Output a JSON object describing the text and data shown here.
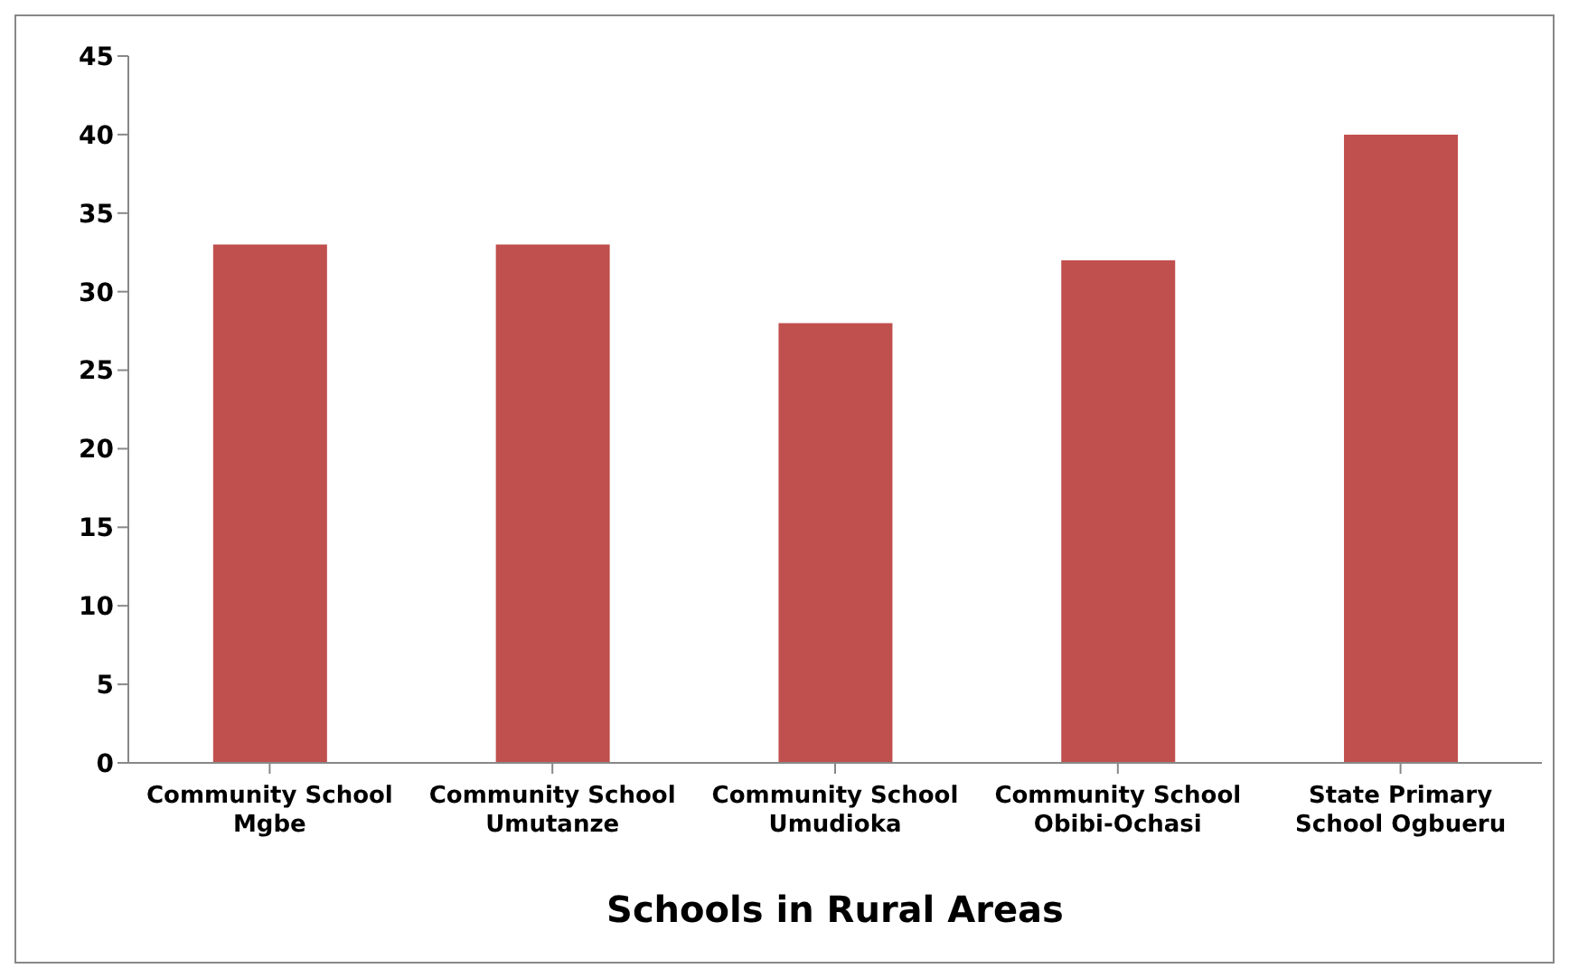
{
  "chart_data": {
    "type": "bar",
    "xlabel": "Schools in Rural Areas",
    "categories": [
      "Community School Mgbe",
      "Community School Umutanze",
      "Community School Umudioka",
      "Community School Obibi-Ochasi",
      "State Primary School Ogbueru"
    ],
    "values": [
      33,
      33,
      28,
      32,
      40
    ],
    "color": "#c0504d",
    "ylim": [
      0,
      45
    ],
    "yticks": [
      0,
      5,
      10,
      15,
      20,
      25,
      30,
      35,
      40,
      45
    ],
    "grid": false,
    "legend": false
  }
}
